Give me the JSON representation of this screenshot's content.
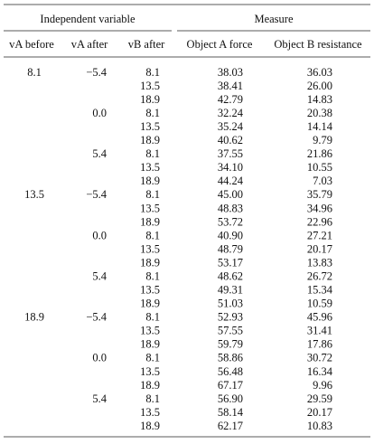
{
  "table": {
    "header": {
      "groups": [
        "Independent variable",
        "Measure"
      ],
      "columns": [
        "vA before",
        "vA after",
        "vB after",
        "Object A force",
        "Object B resistance"
      ]
    },
    "groups": [
      {
        "va_before": "8.1",
        "subgroups": [
          {
            "va_after": "−5.4",
            "rows": [
              [
                "8.1",
                "38.03",
                "36.03"
              ],
              [
                "13.5",
                "38.41",
                "26.00"
              ],
              [
                "18.9",
                "42.79",
                "14.83"
              ]
            ]
          },
          {
            "va_after": "0.0",
            "rows": [
              [
                "8.1",
                "32.24",
                "20.38"
              ],
              [
                "13.5",
                "35.24",
                "14.14"
              ],
              [
                "18.9",
                "40.62",
                "9.79"
              ]
            ]
          },
          {
            "va_after": "5.4",
            "rows": [
              [
                "8.1",
                "37.55",
                "21.86"
              ],
              [
                "13.5",
                "34.10",
                "10.55"
              ],
              [
                "18.9",
                "44.24",
                "7.03"
              ]
            ]
          }
        ]
      },
      {
        "va_before": "13.5",
        "subgroups": [
          {
            "va_after": "−5.4",
            "rows": [
              [
                "8.1",
                "45.00",
                "35.79"
              ],
              [
                "13.5",
                "48.83",
                "34.96"
              ],
              [
                "18.9",
                "53.72",
                "22.96"
              ]
            ]
          },
          {
            "va_after": "0.0",
            "rows": [
              [
                "8.1",
                "40.90",
                "27.21"
              ],
              [
                "13.5",
                "48.79",
                "20.17"
              ],
              [
                "18.9",
                "53.17",
                "13.83"
              ]
            ]
          },
          {
            "va_after": "5.4",
            "rows": [
              [
                "8.1",
                "48.62",
                "26.72"
              ],
              [
                "13.5",
                "49.31",
                "15.34"
              ],
              [
                "18.9",
                "51.03",
                "10.59"
              ]
            ]
          }
        ]
      },
      {
        "va_before": "18.9",
        "subgroups": [
          {
            "va_after": "−5.4",
            "rows": [
              [
                "8.1",
                "52.93",
                "45.96"
              ],
              [
                "13.5",
                "57.55",
                "31.41"
              ],
              [
                "18.9",
                "59.79",
                "17.86"
              ]
            ]
          },
          {
            "va_after": "0.0",
            "rows": [
              [
                "8.1",
                "58.86",
                "30.72"
              ],
              [
                "13.5",
                "56.48",
                "16.34"
              ],
              [
                "18.9",
                "67.17",
                "9.96"
              ]
            ]
          },
          {
            "va_after": "5.4",
            "rows": [
              [
                "8.1",
                "56.90",
                "29.59"
              ],
              [
                "13.5",
                "58.14",
                "20.17"
              ],
              [
                "18.9",
                "62.17",
                "10.83"
              ]
            ]
          }
        ]
      }
    ]
  }
}
